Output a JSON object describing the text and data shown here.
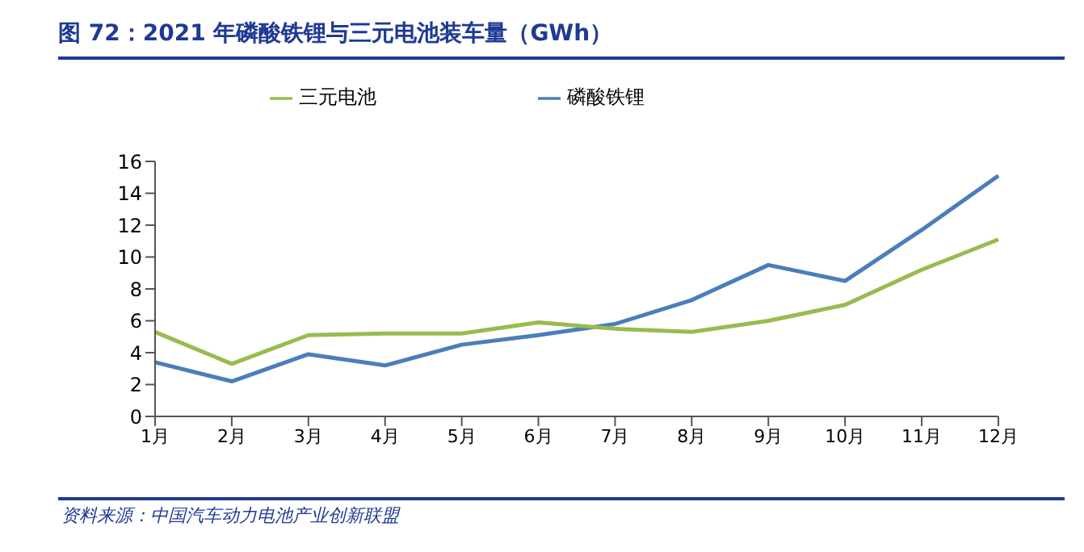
{
  "chart_data": {
    "type": "line",
    "title": "图 72：2021 年磷酸铁锂与三元电池装车量（GWh）",
    "categories": [
      "1月",
      "2月",
      "3月",
      "4月",
      "5月",
      "6月",
      "7月",
      "8月",
      "9月",
      "10月",
      "11月",
      "12月"
    ],
    "series": [
      {
        "name": "磷酸铁锂",
        "color": "#4a7ebb",
        "values": [
          3.4,
          2.2,
          3.9,
          3.2,
          4.5,
          5.1,
          5.8,
          7.3,
          9.5,
          8.5,
          11.7,
          15.1
        ]
      },
      {
        "name": "三元电池",
        "color": "#98bb4f",
        "values": [
          5.3,
          3.3,
          5.1,
          5.2,
          5.2,
          5.9,
          5.5,
          5.3,
          6.0,
          7.0,
          9.2,
          11.1
        ]
      }
    ],
    "ylim": [
      0,
      16
    ],
    "yticks": [
      0,
      2,
      4,
      6,
      8,
      10,
      12,
      14,
      16
    ],
    "grid": false,
    "legend": "top",
    "marker": "none",
    "line_style": "solid",
    "annotations": [
      "资料来源：中国汽车动力电池产业创新联盟"
    ]
  }
}
